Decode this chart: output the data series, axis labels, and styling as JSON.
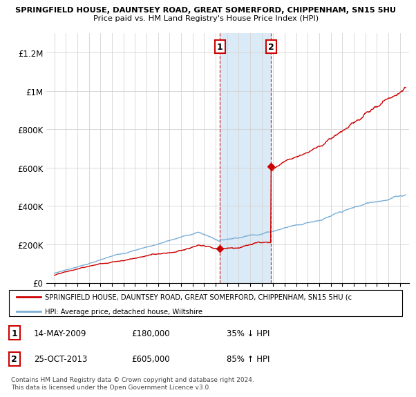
{
  "title1": "SPRINGFIELD HOUSE, DAUNTSEY ROAD, GREAT SOMERFORD, CHIPPENHAM, SN15 5HU",
  "title2": "Price paid vs. HM Land Registry's House Price Index (HPI)",
  "ylim": [
    0,
    1300000
  ],
  "yticks": [
    0,
    200000,
    400000,
    600000,
    800000,
    1000000,
    1200000
  ],
  "ytick_labels": [
    "£0",
    "£200K",
    "£400K",
    "£600K",
    "£800K",
    "£1M",
    "£1.2M"
  ],
  "sale1_date": 2009.37,
  "sale1_price": 180000,
  "sale2_date": 2013.82,
  "sale2_price": 605000,
  "hpi_color": "#7aaed6",
  "price_color": "#cc0000",
  "shade_color": "#daeaf7",
  "legend_line1": "SPRINGFIELD HOUSE, DAUNTSEY ROAD, GREAT SOMERFORD, CHIPPENHAM, SN15 5HU (c",
  "legend_line2": "HPI: Average price, detached house, Wiltshire",
  "table_row1_label": "1",
  "table_row1_date": "14-MAY-2009",
  "table_row1_price": "£180,000",
  "table_row1_hpi": "35% ↓ HPI",
  "table_row2_label": "2",
  "table_row2_date": "25-OCT-2013",
  "table_row2_price": "£605,000",
  "table_row2_hpi": "85% ↑ HPI",
  "footnote": "Contains HM Land Registry data © Crown copyright and database right 2024.\nThis data is licensed under the Open Government Licence v3.0."
}
